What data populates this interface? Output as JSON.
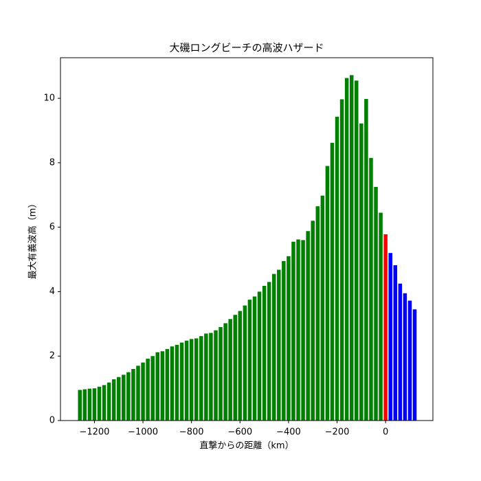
{
  "chart_data": {
    "type": "bar",
    "title": "大磯ロングビーチの高波ハザード",
    "xlabel": "直撃からの距離（km）",
    "ylabel": "最大有義波高（m）",
    "x": [
      -1260,
      -1240,
      -1220,
      -1200,
      -1180,
      -1160,
      -1140,
      -1120,
      -1100,
      -1080,
      -1060,
      -1040,
      -1020,
      -1000,
      -980,
      -960,
      -940,
      -920,
      -900,
      -880,
      -860,
      -840,
      -820,
      -800,
      -780,
      -760,
      -740,
      -720,
      -700,
      -680,
      -660,
      -640,
      -620,
      -600,
      -580,
      -560,
      -540,
      -520,
      -500,
      -480,
      -460,
      -440,
      -420,
      -400,
      -380,
      -360,
      -340,
      -320,
      -300,
      -280,
      -260,
      -240,
      -220,
      -200,
      -180,
      -160,
      -140,
      -120,
      -100,
      -80,
      -60,
      -40,
      -20,
      0,
      20,
      40,
      60,
      80,
      100,
      120
    ],
    "values": [
      0.95,
      0.97,
      0.99,
      1.0,
      1.05,
      1.1,
      1.18,
      1.28,
      1.35,
      1.42,
      1.5,
      1.6,
      1.7,
      1.8,
      1.92,
      2.0,
      2.12,
      2.15,
      2.22,
      2.3,
      2.35,
      2.42,
      2.48,
      2.53,
      2.55,
      2.62,
      2.7,
      2.72,
      2.8,
      2.9,
      3.02,
      3.15,
      3.28,
      3.4,
      3.57,
      3.75,
      3.85,
      4.0,
      4.18,
      4.3,
      4.55,
      4.68,
      4.95,
      5.1,
      5.55,
      5.62,
      5.6,
      5.88,
      6.2,
      6.65,
      6.98,
      7.9,
      8.62,
      9.43,
      9.97,
      10.63,
      10.72,
      10.55,
      9.22,
      9.98,
      8.15,
      7.25,
      6.45,
      5.78,
      5.2,
      4.82,
      4.25,
      3.95,
      3.72,
      3.45
    ],
    "colors": [
      "#008000",
      "#008000",
      "#008000",
      "#008000",
      "#008000",
      "#008000",
      "#008000",
      "#008000",
      "#008000",
      "#008000",
      "#008000",
      "#008000",
      "#008000",
      "#008000",
      "#008000",
      "#008000",
      "#008000",
      "#008000",
      "#008000",
      "#008000",
      "#008000",
      "#008000",
      "#008000",
      "#008000",
      "#008000",
      "#008000",
      "#008000",
      "#008000",
      "#008000",
      "#008000",
      "#008000",
      "#008000",
      "#008000",
      "#008000",
      "#008000",
      "#008000",
      "#008000",
      "#008000",
      "#008000",
      "#008000",
      "#008000",
      "#008000",
      "#008000",
      "#008000",
      "#008000",
      "#008000",
      "#008000",
      "#008000",
      "#008000",
      "#008000",
      "#008000",
      "#008000",
      "#008000",
      "#008000",
      "#008000",
      "#008000",
      "#008000",
      "#008000",
      "#008000",
      "#008000",
      "#008000",
      "#008000",
      "#008000",
      "#ff0000",
      "#0000ff",
      "#0000ff",
      "#0000ff",
      "#0000ff",
      "#0000ff",
      "#0000ff"
    ],
    "xlim": [
      -1340,
      195
    ],
    "ylim": [
      0,
      11.26
    ],
    "xticks": [
      {
        "value": -1200,
        "label": "−1200"
      },
      {
        "value": -1000,
        "label": "−1000"
      },
      {
        "value": -800,
        "label": "−800"
      },
      {
        "value": -600,
        "label": "−600"
      },
      {
        "value": -400,
        "label": "−400"
      },
      {
        "value": -200,
        "label": "−200"
      },
      0
    ],
    "yticks": [
      0,
      2,
      4,
      6,
      8,
      10
    ]
  }
}
